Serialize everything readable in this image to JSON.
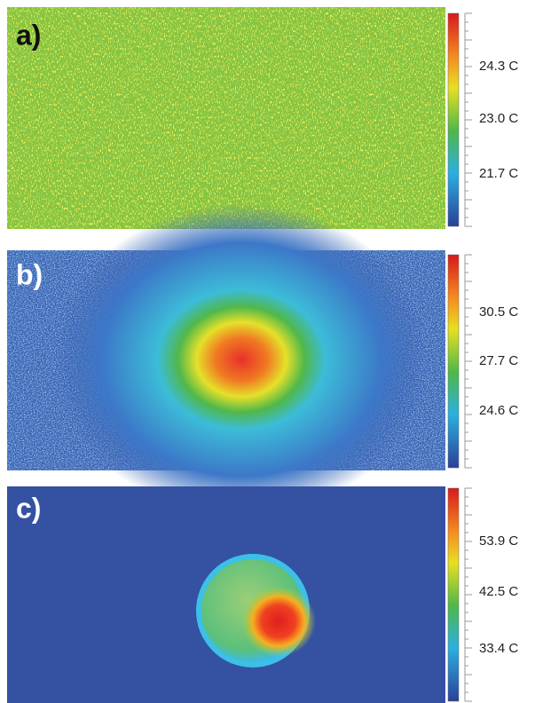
{
  "panels": [
    {
      "label": "a)",
      "scale_labels": [
        "24.3 C",
        "23.0 C",
        "21.7 C"
      ]
    },
    {
      "label": "b)",
      "scale_labels": [
        "30.5 C",
        "27.7 C",
        "24.6 C"
      ]
    },
    {
      "label": "c)",
      "scale_labels": [
        "53.9 C",
        "42.5 C",
        "33.4 C"
      ]
    }
  ]
}
